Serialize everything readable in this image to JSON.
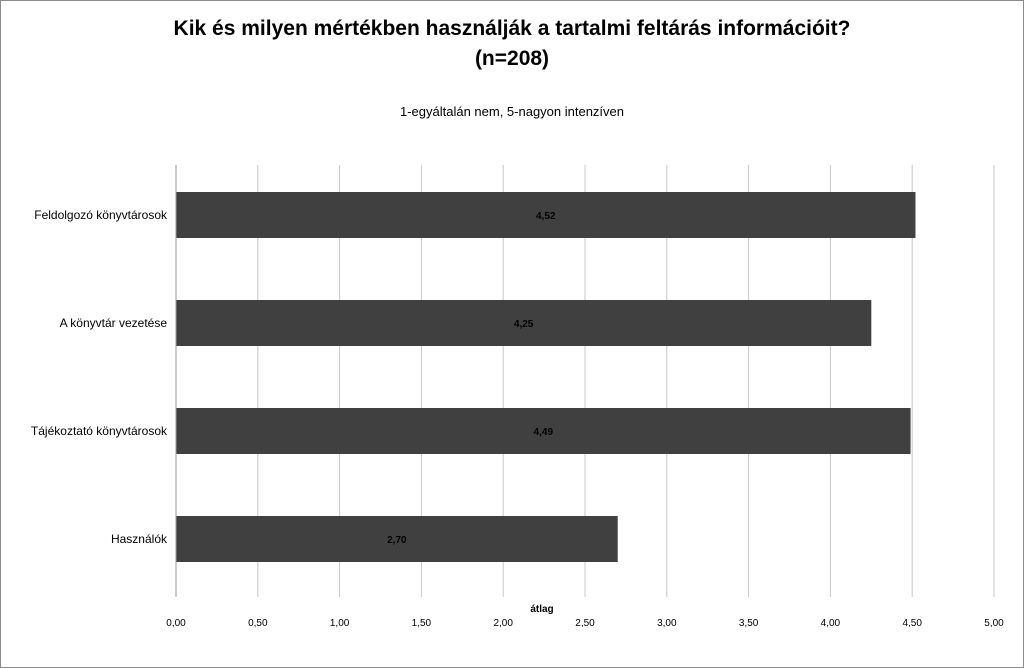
{
  "chart_data": {
    "type": "bar",
    "orientation": "horizontal",
    "title_line1": "Kik és milyen mértékben használják a tartalmi feltárás információit?",
    "title_line2": "(n=208)",
    "subtitle": "1-egyáltalán nem, 5-nagyon intenzíven",
    "xlabel": "átlag",
    "categories": [
      "Feldolgozó könyvtárosok",
      "A könyvtár vezetése",
      "Tájékoztató könyvtárosok",
      "Használók"
    ],
    "values": [
      4.52,
      4.25,
      4.49,
      2.7
    ],
    "value_labels": [
      "4,52",
      "4,25",
      "4,49",
      "2,70"
    ],
    "xlim": [
      0,
      5
    ],
    "xticks": [
      "0,00",
      "0,50",
      "1,00",
      "1,50",
      "2,00",
      "2,50",
      "3,00",
      "3,50",
      "4,00",
      "4,50",
      "5,00"
    ],
    "grid": true,
    "bar_color": "#404040",
    "grid_color": "#c8c8c8"
  }
}
